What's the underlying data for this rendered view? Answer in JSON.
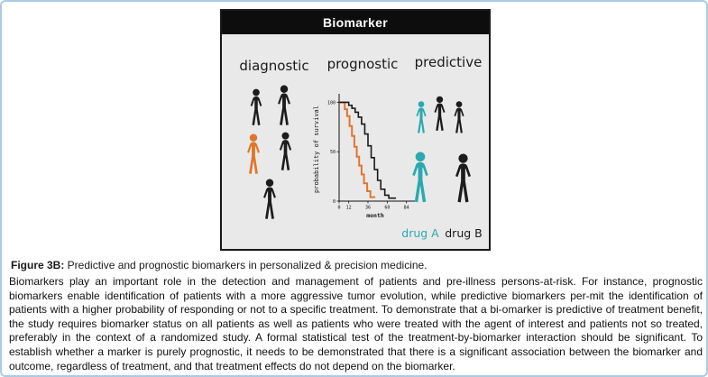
{
  "page": {
    "border_color": "#a9cbe6",
    "background": "#ffffff"
  },
  "figure": {
    "title": "Biomarker",
    "columns": {
      "diagnostic": "diagnostic",
      "prognostic": "prognostic",
      "predictive": "predictive"
    },
    "drug_a_label": "drug A",
    "drug_b_label": "drug B",
    "colors": {
      "diagnostic_highlight": "#e0762c",
      "predictive_highlight": "#2aa9b0",
      "figure_black": "#1c1c1c",
      "panel_background": "#e9e9e9"
    }
  },
  "chart_data": {
    "type": "line",
    "subtype": "kaplan-meier-step",
    "title": "",
    "xlabel": "month",
    "ylabel": "probability of survival",
    "xlim": [
      0,
      90
    ],
    "ylim": [
      0,
      105
    ],
    "xticks": [
      0,
      12,
      36,
      60,
      84
    ],
    "yticks": [
      0,
      50,
      100
    ],
    "grid": false,
    "legend": "none",
    "series": [
      {
        "name": "orange-curve",
        "color": "#e0762c",
        "width": 2,
        "x": [
          0,
          7,
          10,
          13,
          16,
          19,
          22,
          25,
          28,
          31,
          35,
          39,
          44
        ],
        "y": [
          100,
          93,
          86,
          76,
          66,
          55,
          45,
          36,
          27,
          18,
          10,
          4,
          4
        ]
      },
      {
        "name": "black-curve",
        "color": "#1a1a1a",
        "width": 1.6,
        "x": [
          0,
          12,
          16,
          20,
          24,
          28,
          32,
          36,
          40,
          44,
          48,
          52,
          57,
          62,
          70
        ],
        "y": [
          100,
          97,
          94,
          90,
          85,
          78,
          68,
          56,
          44,
          32,
          21,
          12,
          6,
          3,
          3
        ]
      }
    ]
  },
  "caption": {
    "label": "Figure 3B:",
    "text": " Predictive and prognostic biomarkers in personalized & precision medicine."
  },
  "body": {
    "text": "Biomarkers play an important role in the detection and management of patients and pre-illness persons-at-risk. For instance, prognostic biomarkers enable identification of patients with a more aggressive tumor evolution, while predictive biomarkers per-mit the identification of patients with a higher probability of responding or not to a specific treatment. To demonstrate that a bi-omarker is predictive of treatment benefit, the study requires biomarker status on all patients as well as patients who were treated with the agent of interest and patients not so treated, preferably in the context of a randomized study. A formal statistical test of the treatment-by-biomarker interaction should be significant. To establish whether a marker is purely prognostic, it needs to be demonstrated that there is a significant association between the biomarker and outcome, regardless of treatment, and that treatment effects do not depend on the biomarker."
  }
}
